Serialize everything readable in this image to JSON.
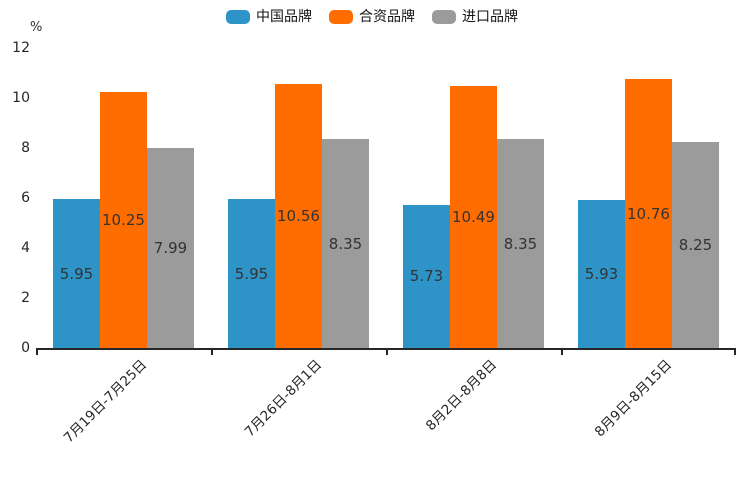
{
  "chart_data": {
    "type": "bar",
    "title": "",
    "xlabel": "",
    "ylabel": "%",
    "unit": "%",
    "ylim": [
      0,
      12
    ],
    "yticks": [
      0,
      2,
      4,
      6,
      8,
      10,
      12
    ],
    "grid": false,
    "legend_position": "top",
    "categories": [
      "7月19日-7月25日",
      "7月26日-8月1日",
      "8月2日-8月8日",
      "8月9日-8月15日"
    ],
    "series": [
      {
        "name": "中国品牌",
        "color": "#2E94C8",
        "values": [
          5.95,
          5.95,
          5.73,
          5.93
        ]
      },
      {
        "name": "合资品牌",
        "color": "#FF6D00",
        "values": [
          10.25,
          10.56,
          10.49,
          10.76
        ]
      },
      {
        "name": "进口品牌",
        "color": "#9B9B9B",
        "values": [
          7.99,
          8.35,
          8.35,
          8.25
        ]
      }
    ],
    "value_label_color": "#333333",
    "axis_color": "#262626"
  }
}
